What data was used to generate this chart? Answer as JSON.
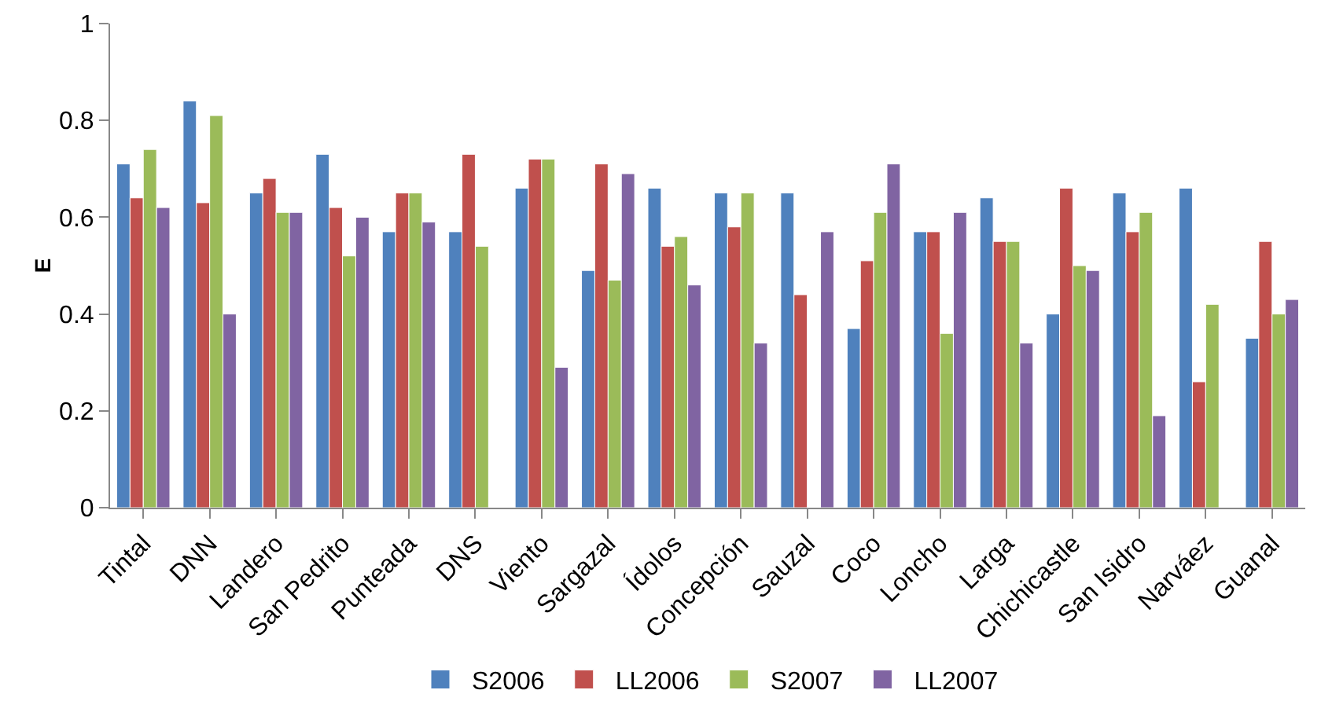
{
  "chart_data": {
    "type": "bar",
    "ylabel": "E",
    "categories": [
      "Tintal",
      "DNN",
      "Landero",
      "San Pedrito",
      "Punteada",
      "DNS",
      "Viento",
      "Sargazal",
      "Ídolos",
      "Concepción",
      "Sauzal",
      "Coco",
      "Loncho",
      "Larga",
      "Chichicastle",
      "San Isidro",
      "Narváez",
      "Guanal"
    ],
    "series": [
      {
        "name": "S2006",
        "color": "#4f81bd",
        "values": [
          0.71,
          0.84,
          0.65,
          0.73,
          0.57,
          0.57,
          0.66,
          0.49,
          0.66,
          0.65,
          0.65,
          0.37,
          0.57,
          0.64,
          0.4,
          0.65,
          0.66,
          0.35
        ]
      },
      {
        "name": "LL2006",
        "color": "#c0504d",
        "values": [
          0.64,
          0.63,
          0.68,
          0.62,
          0.65,
          0.73,
          0.72,
          0.71,
          0.54,
          0.58,
          0.44,
          0.51,
          0.57,
          0.55,
          0.66,
          0.57,
          0.26,
          0.55
        ]
      },
      {
        "name": "S2007",
        "color": "#9bbb59",
        "values": [
          0.74,
          0.81,
          0.61,
          0.52,
          0.65,
          0.54,
          0.72,
          0.47,
          0.56,
          0.65,
          null,
          0.61,
          0.36,
          0.55,
          0.5,
          0.61,
          0.42,
          0.4
        ]
      },
      {
        "name": "LL2007",
        "color": "#8064a2",
        "values": [
          0.62,
          0.4,
          0.61,
          0.6,
          0.59,
          null,
          0.29,
          0.69,
          0.46,
          0.34,
          0.57,
          0.71,
          0.61,
          0.34,
          0.49,
          0.19,
          null,
          0.43
        ]
      }
    ],
    "ylim": [
      0,
      1
    ],
    "yticks": [
      0,
      0.2,
      0.4,
      0.6,
      0.8,
      1
    ],
    "grid": false,
    "legend": "bottom"
  }
}
